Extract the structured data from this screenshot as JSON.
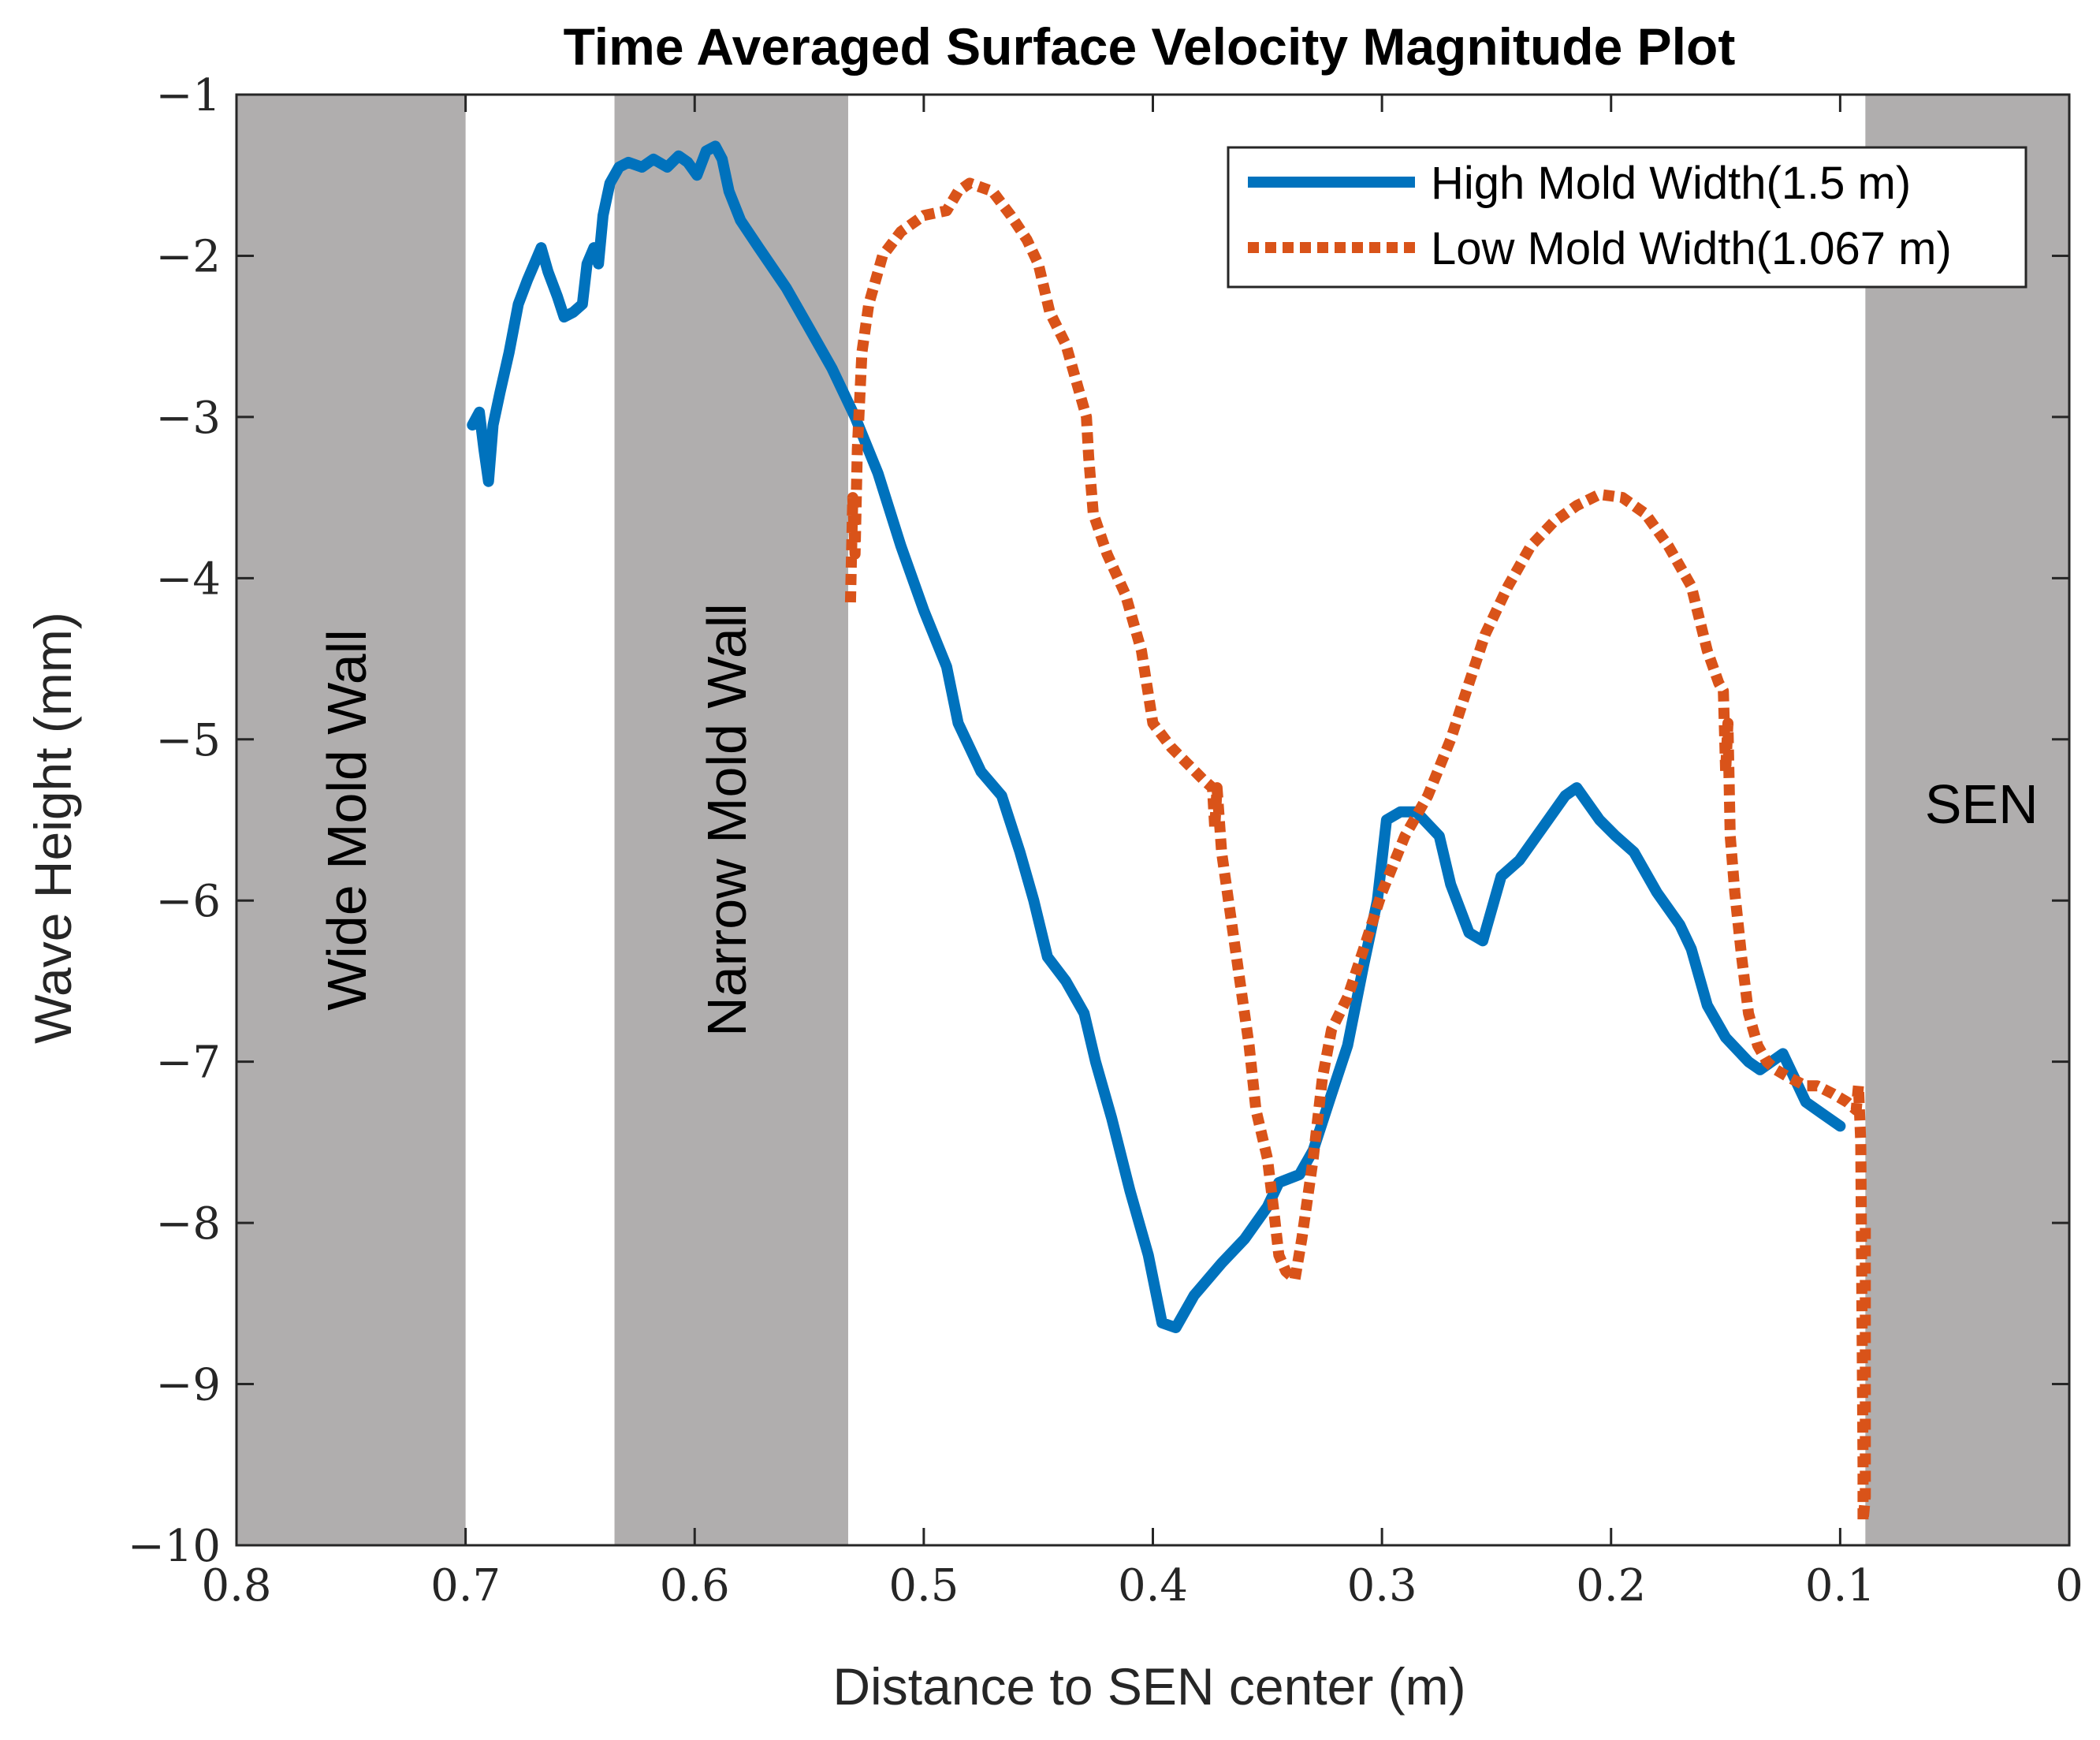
{
  "chart_data": {
    "type": "line",
    "title": "Time Averaged Surface Velocity Magnitude Plot",
    "xlabel": "Distance to SEN center (m)",
    "ylabel": "Wave Height (mm)",
    "xlim": [
      0.8,
      0
    ],
    "ylim": [
      -10,
      -1
    ],
    "x_reversed": true,
    "xticks": [
      0.8,
      0.7,
      0.6,
      0.5,
      0.4,
      0.3,
      0.2,
      0.1,
      0
    ],
    "xtick_labels": [
      "0.8",
      "0.7",
      "0.6",
      "0.5",
      "0.4",
      "0.3",
      "0.2",
      "0.1",
      "0"
    ],
    "yticks": [
      -1,
      -2,
      -3,
      -4,
      -5,
      -6,
      -7,
      -8,
      -9,
      -10
    ],
    "ytick_labels": [
      "−1",
      "−2",
      "−3",
      "−4",
      "−5",
      "−6",
      "−7",
      "−8",
      "−9",
      "−10"
    ],
    "grid": false,
    "legend_position": "top-right",
    "shaded_regions": [
      {
        "name": "wide-mold-wall",
        "label": "Wide Mold Wall",
        "x_from": 0.8,
        "x_to": 0.7,
        "color": "#b0aeae",
        "label_orientation": "vertical"
      },
      {
        "name": "narrow-mold-wall",
        "label": "Narrow Mold Wall",
        "x_from": 0.635,
        "x_to": 0.533,
        "color": "#b0aeae",
        "label_orientation": "vertical"
      },
      {
        "name": "sen",
        "label": "SEN",
        "x_from": 0.089,
        "x_to": 0,
        "color": "#b0aeae",
        "label_orientation": "horizontal"
      }
    ],
    "series": [
      {
        "name": "High Mold Width(1.5 m)",
        "color": "#0072bd",
        "style": "solid",
        "points": [
          [
            0.697,
            -3.05
          ],
          [
            0.694,
            -2.97
          ],
          [
            0.692,
            -3.2
          ],
          [
            0.69,
            -3.4
          ],
          [
            0.688,
            -3.05
          ],
          [
            0.685,
            -2.85
          ],
          [
            0.681,
            -2.6
          ],
          [
            0.677,
            -2.3
          ],
          [
            0.673,
            -2.15
          ],
          [
            0.67,
            -2.05
          ],
          [
            0.667,
            -1.95
          ],
          [
            0.664,
            -2.1
          ],
          [
            0.66,
            -2.25
          ],
          [
            0.657,
            -2.38
          ],
          [
            0.653,
            -2.35
          ],
          [
            0.649,
            -2.3
          ],
          [
            0.647,
            -2.05
          ],
          [
            0.644,
            -1.95
          ],
          [
            0.642,
            -2.05
          ],
          [
            0.64,
            -1.75
          ],
          [
            0.637,
            -1.55
          ],
          [
            0.633,
            -1.45
          ],
          [
            0.629,
            -1.42
          ],
          [
            0.623,
            -1.45
          ],
          [
            0.618,
            -1.4
          ],
          [
            0.612,
            -1.45
          ],
          [
            0.607,
            -1.38
          ],
          [
            0.603,
            -1.42
          ],
          [
            0.599,
            -1.5
          ],
          [
            0.595,
            -1.35
          ],
          [
            0.591,
            -1.32
          ],
          [
            0.588,
            -1.4
          ],
          [
            0.585,
            -1.6
          ],
          [
            0.58,
            -1.78
          ],
          [
            0.572,
            -1.95
          ],
          [
            0.56,
            -2.2
          ],
          [
            0.55,
            -2.45
          ],
          [
            0.54,
            -2.7
          ],
          [
            0.53,
            -3.0
          ],
          [
            0.52,
            -3.35
          ],
          [
            0.51,
            -3.8
          ],
          [
            0.5,
            -4.2
          ],
          [
            0.49,
            -4.55
          ],
          [
            0.485,
            -4.9
          ],
          [
            0.475,
            -5.2
          ],
          [
            0.466,
            -5.35
          ],
          [
            0.458,
            -5.7
          ],
          [
            0.452,
            -6.0
          ],
          [
            0.446,
            -6.35
          ],
          [
            0.438,
            -6.5
          ],
          [
            0.43,
            -6.7
          ],
          [
            0.425,
            -7.0
          ],
          [
            0.418,
            -7.35
          ],
          [
            0.41,
            -7.8
          ],
          [
            0.402,
            -8.2
          ],
          [
            0.396,
            -8.62
          ],
          [
            0.39,
            -8.65
          ],
          [
            0.382,
            -8.45
          ],
          [
            0.37,
            -8.25
          ],
          [
            0.36,
            -8.1
          ],
          [
            0.35,
            -7.9
          ],
          [
            0.345,
            -7.75
          ],
          [
            0.336,
            -7.7
          ],
          [
            0.33,
            -7.55
          ],
          [
            0.322,
            -7.2
          ],
          [
            0.315,
            -6.9
          ],
          [
            0.308,
            -6.4
          ],
          [
            0.302,
            -6.0
          ],
          [
            0.298,
            -5.5
          ],
          [
            0.292,
            -5.45
          ],
          [
            0.285,
            -5.45
          ],
          [
            0.275,
            -5.6
          ],
          [
            0.27,
            -5.9
          ],
          [
            0.262,
            -6.2
          ],
          [
            0.256,
            -6.25
          ],
          [
            0.248,
            -5.85
          ],
          [
            0.24,
            -5.75
          ],
          [
            0.23,
            -5.55
          ],
          [
            0.22,
            -5.35
          ],
          [
            0.215,
            -5.3
          ],
          [
            0.205,
            -5.5
          ],
          [
            0.198,
            -5.6
          ],
          [
            0.19,
            -5.7
          ],
          [
            0.18,
            -5.95
          ],
          [
            0.17,
            -6.15
          ],
          [
            0.165,
            -6.3
          ],
          [
            0.158,
            -6.65
          ],
          [
            0.15,
            -6.85
          ],
          [
            0.14,
            -7.0
          ],
          [
            0.135,
            -7.05
          ],
          [
            0.13,
            -7.0
          ],
          [
            0.125,
            -6.95
          ],
          [
            0.12,
            -7.1
          ],
          [
            0.115,
            -7.25
          ],
          [
            0.108,
            -7.32
          ],
          [
            0.1,
            -7.4
          ]
        ]
      },
      {
        "name": "Low Mold Width(1.067 m)",
        "color": "#d95319",
        "style": "dotted",
        "points": [
          [
            0.532,
            -4.15
          ],
          [
            0.531,
            -3.5
          ],
          [
            0.53,
            -3.85
          ],
          [
            0.529,
            -3.2
          ],
          [
            0.527,
            -2.6
          ],
          [
            0.524,
            -2.3
          ],
          [
            0.518,
            -2.0
          ],
          [
            0.51,
            -1.85
          ],
          [
            0.5,
            -1.75
          ],
          [
            0.49,
            -1.72
          ],
          [
            0.485,
            -1.6
          ],
          [
            0.48,
            -1.55
          ],
          [
            0.47,
            -1.6
          ],
          [
            0.462,
            -1.75
          ],
          [
            0.455,
            -1.9
          ],
          [
            0.45,
            -2.05
          ],
          [
            0.445,
            -2.35
          ],
          [
            0.438,
            -2.55
          ],
          [
            0.432,
            -2.85
          ],
          [
            0.429,
            -3.0
          ],
          [
            0.428,
            -3.25
          ],
          [
            0.426,
            -3.6
          ],
          [
            0.42,
            -3.85
          ],
          [
            0.412,
            -4.1
          ],
          [
            0.405,
            -4.45
          ],
          [
            0.4,
            -4.9
          ],
          [
            0.392,
            -5.05
          ],
          [
            0.385,
            -5.15
          ],
          [
            0.378,
            -5.25
          ],
          [
            0.374,
            -5.3
          ],
          [
            0.373,
            -5.55
          ],
          [
            0.372,
            -5.3
          ],
          [
            0.37,
            -5.7
          ],
          [
            0.366,
            -6.1
          ],
          [
            0.362,
            -6.5
          ],
          [
            0.358,
            -6.9
          ],
          [
            0.355,
            -7.3
          ],
          [
            0.35,
            -7.6
          ],
          [
            0.347,
            -7.95
          ],
          [
            0.345,
            -8.2
          ],
          [
            0.342,
            -8.3
          ],
          [
            0.338,
            -8.35
          ],
          [
            0.335,
            -8.1
          ],
          [
            0.33,
            -7.6
          ],
          [
            0.326,
            -7.1
          ],
          [
            0.322,
            -6.8
          ],
          [
            0.315,
            -6.6
          ],
          [
            0.308,
            -6.3
          ],
          [
            0.3,
            -5.95
          ],
          [
            0.29,
            -5.6
          ],
          [
            0.28,
            -5.35
          ],
          [
            0.27,
            -5.0
          ],
          [
            0.262,
            -4.65
          ],
          [
            0.255,
            -4.35
          ],
          [
            0.245,
            -4.05
          ],
          [
            0.235,
            -3.8
          ],
          [
            0.225,
            -3.65
          ],
          [
            0.215,
            -3.55
          ],
          [
            0.205,
            -3.48
          ],
          [
            0.195,
            -3.5
          ],
          [
            0.185,
            -3.6
          ],
          [
            0.175,
            -3.8
          ],
          [
            0.165,
            -4.05
          ],
          [
            0.158,
            -4.45
          ],
          [
            0.153,
            -4.65
          ],
          [
            0.151,
            -4.7
          ],
          [
            0.15,
            -5.2
          ],
          [
            0.149,
            -4.9
          ],
          [
            0.148,
            -5.6
          ],
          [
            0.146,
            -5.95
          ],
          [
            0.143,
            -6.35
          ],
          [
            0.14,
            -6.7
          ],
          [
            0.136,
            -6.9
          ],
          [
            0.132,
            -7.0
          ],
          [
            0.128,
            -7.05
          ],
          [
            0.122,
            -7.1
          ],
          [
            0.115,
            -7.15
          ],
          [
            0.11,
            -7.15
          ],
          [
            0.103,
            -7.2
          ],
          [
            0.097,
            -7.25
          ],
          [
            0.093,
            -7.3
          ],
          [
            0.092,
            -7.15
          ],
          [
            0.091,
            -7.5
          ],
          [
            0.09,
            -9.5
          ],
          [
            0.09,
            -9.85
          ],
          [
            0.089,
            -9.7
          ],
          [
            0.089,
            -8.0
          ]
        ]
      }
    ]
  }
}
